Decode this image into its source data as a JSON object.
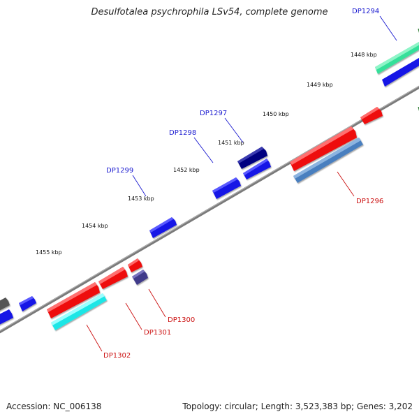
{
  "title": "Desulfotalea psychrophila LSv54, complete genome",
  "footer": {
    "accession": "Accession: NC_006138",
    "summary": "Topology: circular; Length: 3,523,383 bp; Genes: 3,202"
  },
  "colors": {
    "background": "#ffffff",
    "backbone": "#808080",
    "tick": "#2e7d32",
    "forward_label": "#0000cc",
    "reverse_label": "#cc0000"
  },
  "scale_labels": [
    "1448 kbp",
    "1449 kbp",
    "1450 kbp",
    "1451 kbp",
    "1452 kbp",
    "1453 kbp",
    "1454 kbp",
    "1455 kbp"
  ],
  "genes": [
    {
      "id": "DP1294",
      "strand": "forward",
      "color": "#2ee89a"
    },
    {
      "id": "DP1297",
      "strand": "forward",
      "color": "#000080"
    },
    {
      "id": "DP1298",
      "strand": "forward",
      "color": "#1a1aee"
    },
    {
      "id": "DP1299",
      "strand": "forward",
      "color": "#1a1aee"
    },
    {
      "id": "DP1296",
      "strand": "reverse",
      "color": "#4a7fbf"
    },
    {
      "id": "DP1300",
      "strand": "reverse",
      "color": "#403a8a"
    },
    {
      "id": "DP1301",
      "strand": "reverse",
      "color": "#ee1111"
    },
    {
      "id": "DP1302",
      "strand": "reverse",
      "color": "#22e8e8"
    }
  ]
}
